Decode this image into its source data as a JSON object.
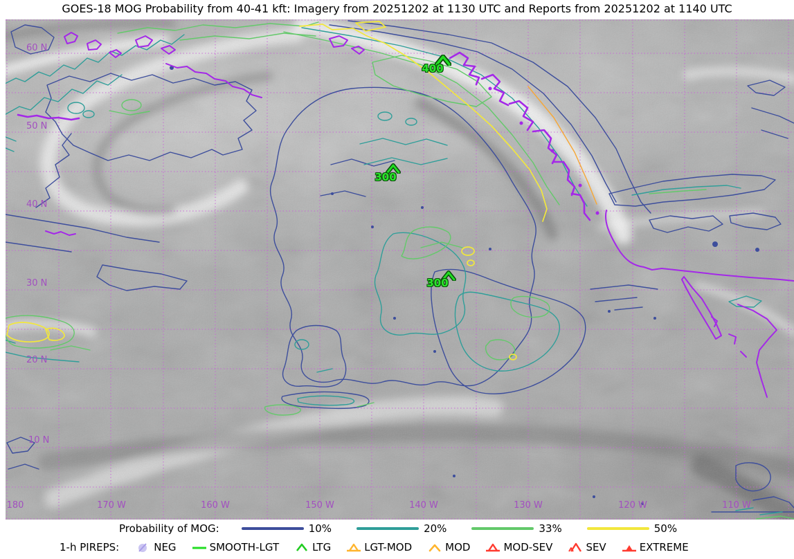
{
  "title": "GOES-18 MOG Probability from 40-41 kft: Imagery from 20251202 at 1130 UTC and Reports from 20251202 at 1140 UTC",
  "map": {
    "lat_labels": [
      "60 N",
      "50 N",
      "40 N",
      "30 N",
      "20 N",
      "10 N"
    ],
    "lon_labels": [
      "180",
      "170 W",
      "160 W",
      "150 W",
      "140 W",
      "130 W",
      "120 W",
      "110 W"
    ],
    "grid_color": "#c85fd9",
    "geo_label_color": "#a24fc0",
    "pirep_reports": [
      {
        "flight_level": "400",
        "type": "LTG"
      },
      {
        "flight_level": "300",
        "type": "LTG"
      },
      {
        "flight_level": "300",
        "type": "LTG"
      }
    ]
  },
  "probability_legend": {
    "label": "Probability of MOG:",
    "items": [
      {
        "label": "10%",
        "color": "#3d4e9c"
      },
      {
        "label": "20%",
        "color": "#2f9e99"
      },
      {
        "label": "33%",
        "color": "#63c96a"
      },
      {
        "label": "50%",
        "color": "#f2e73c"
      }
    ]
  },
  "pireps_legend": {
    "label": "1-h PIREPS:",
    "items": [
      {
        "label": "NEG",
        "color": "#cbc5f2",
        "marker": "null-sign"
      },
      {
        "label": "SMOOTH-LGT",
        "color": "#22dd22",
        "marker": "line"
      },
      {
        "label": "LTG",
        "color": "#22cc22",
        "marker": "caret"
      },
      {
        "label": "LGT-MOD",
        "color": "#ffb52e",
        "marker": "caret-with-base"
      },
      {
        "label": "MOD",
        "color": "#ffb52e",
        "marker": "caret"
      },
      {
        "label": "MOD-SEV",
        "color": "#ff3b30",
        "marker": "caret-with-base"
      },
      {
        "label": "SEV",
        "color": "#ff3b30",
        "marker": "double-caret"
      },
      {
        "label": "EXTREME",
        "color": "#ff3b30",
        "marker": "filled-triangle-base"
      }
    ]
  },
  "contour_colors": {
    "p10": "#3d4e9c",
    "p20": "#2f9e99",
    "p33": "#63c96a",
    "p50": "#f2e73c",
    "coastline": "#a428e8"
  }
}
